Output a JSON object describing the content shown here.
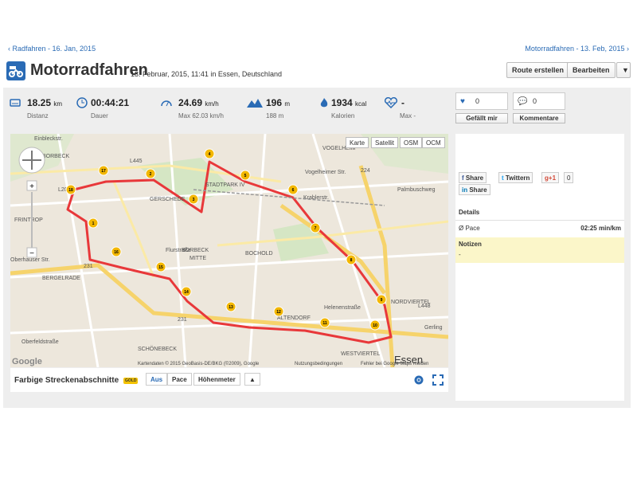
{
  "nav": {
    "prev": "Radfahren - 16. Jan, 2015",
    "next": "Motorradfahren - 13. Feb, 2015"
  },
  "header": {
    "title": "Motorradfahren",
    "subtitle": "13. Februar, 2015, 11:41 in Essen, Deutschland",
    "route_button": "Route erstellen",
    "edit_button": "Bearbeiten",
    "more_button": "▼"
  },
  "stats": {
    "distance": {
      "value": "18.25",
      "unit": "km",
      "label": "Distanz",
      "icon": "distance-icon"
    },
    "duration": {
      "value": "00:44:21",
      "label": "Dauer",
      "icon": "clock-icon"
    },
    "speed": {
      "value": "24.69",
      "unit": "km/h",
      "sub": "Max 62.03 km/h",
      "icon": "speedometer-icon"
    },
    "altitude": {
      "value": "196",
      "unit": "m",
      "sub": "188 m",
      "icon": "mountain-icon"
    },
    "calories": {
      "value": "1934",
      "unit": "kcal",
      "label": "Kalorien",
      "icon": "flame-icon"
    },
    "heart": {
      "value": "-",
      "sub": "Max -",
      "icon": "heartrate-icon"
    }
  },
  "social": {
    "likes": "0",
    "comments": "0",
    "like_button": "Gefällt mir",
    "comment_button": "Kommentare"
  },
  "map": {
    "types": [
      "Karte",
      "Satellit",
      "OSM",
      "OCM"
    ],
    "active_type": "Karte",
    "attribution": "Kartendaten © 2015 GeoBasis-DE/BKG (©2009), Google",
    "terms": "Nutzungsbedingungen",
    "report": "Fehler bei Google Maps melden",
    "google": "Google",
    "labels": [
      "BORBECK",
      "FRINTROP",
      "BERGELRADE",
      "SCHÖNEBECK",
      "BORBECK-MITTE",
      "GERSCHEDE",
      "STADTPARK IV",
      "ALTENDORF",
      "WESTVIERTEL",
      "NORDVIERTEL",
      "Essen",
      "VOGELHEIM",
      "BOCHOLD",
      "L445",
      "L20",
      "L448",
      "224",
      "231",
      "Einbleckstr.",
      "Palmbuschweg",
      "Krablerstr.",
      "Vogelheimer Str.",
      "Oberhauser Str.",
      "Flurstraße",
      "Helenenstraße",
      "Oberfeldstraße",
      "Gerling"
    ],
    "km_markers": [
      "1 km",
      "2 km",
      "3 km",
      "4 km",
      "5 km",
      "6 km",
      "7 km",
      "8 km",
      "9 km",
      "10 km",
      "11 km",
      "12 km",
      "13 km",
      "14 km",
      "15 km",
      "16 km",
      "17 km",
      "18 km"
    ]
  },
  "toolbar": {
    "label": "Farbige Streckenabschnitte",
    "badge": "GOLD",
    "tabs": [
      "Aus",
      "Pace",
      "Höhenmeter"
    ],
    "active": "Aus",
    "arrow": "▲"
  },
  "share": {
    "facebook": "Share",
    "twitter": "Twittern",
    "gplus": "+1",
    "gplus_count": "0",
    "linkedin": "Share"
  },
  "details": {
    "heading": "Details",
    "pace_label": "Ø Pace",
    "pace_value": "02:25 min/km",
    "notes_heading": "Notizen",
    "notes_value": "-"
  },
  "colors": {
    "accent": "#2a6bb5",
    "route": "#e8383a",
    "marker": "#f3b700",
    "notes_bg": "#fbf6c9"
  }
}
